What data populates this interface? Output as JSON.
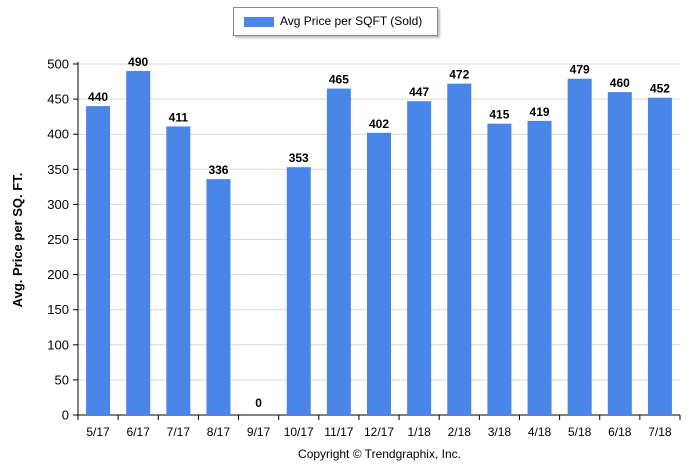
{
  "chart_data": {
    "type": "bar",
    "categories": [
      "5/17",
      "6/17",
      "7/17",
      "8/17",
      "9/17",
      "10/17",
      "11/17",
      "12/17",
      "1/18",
      "2/18",
      "3/18",
      "4/18",
      "5/18",
      "6/18",
      "7/18"
    ],
    "series": [
      {
        "name": "Avg Price per SQFT (Sold)",
        "values": [
          440,
          490,
          411,
          336,
          0,
          353,
          465,
          402,
          447,
          472,
          415,
          419,
          479,
          460,
          452
        ]
      }
    ],
    "data_labels": [
      "440",
      "490",
      "411",
      "336",
      "0",
      "353",
      "465",
      "402",
      "447",
      "472",
      "415",
      "419",
      "479",
      "460",
      "452"
    ],
    "yticks": [
      "0",
      "50",
      "100",
      "150",
      "200",
      "250",
      "300",
      "350",
      "400",
      "450",
      "500"
    ],
    "ylabel": "Avg. Price per SQ. FT.",
    "xlabel": "",
    "ylim": [
      0,
      500
    ],
    "grid": true,
    "legend_position": "top-center",
    "bar_color": "#4a86e8"
  },
  "footer": {
    "copyright": "Copyright © Trendgraphix, Inc."
  }
}
